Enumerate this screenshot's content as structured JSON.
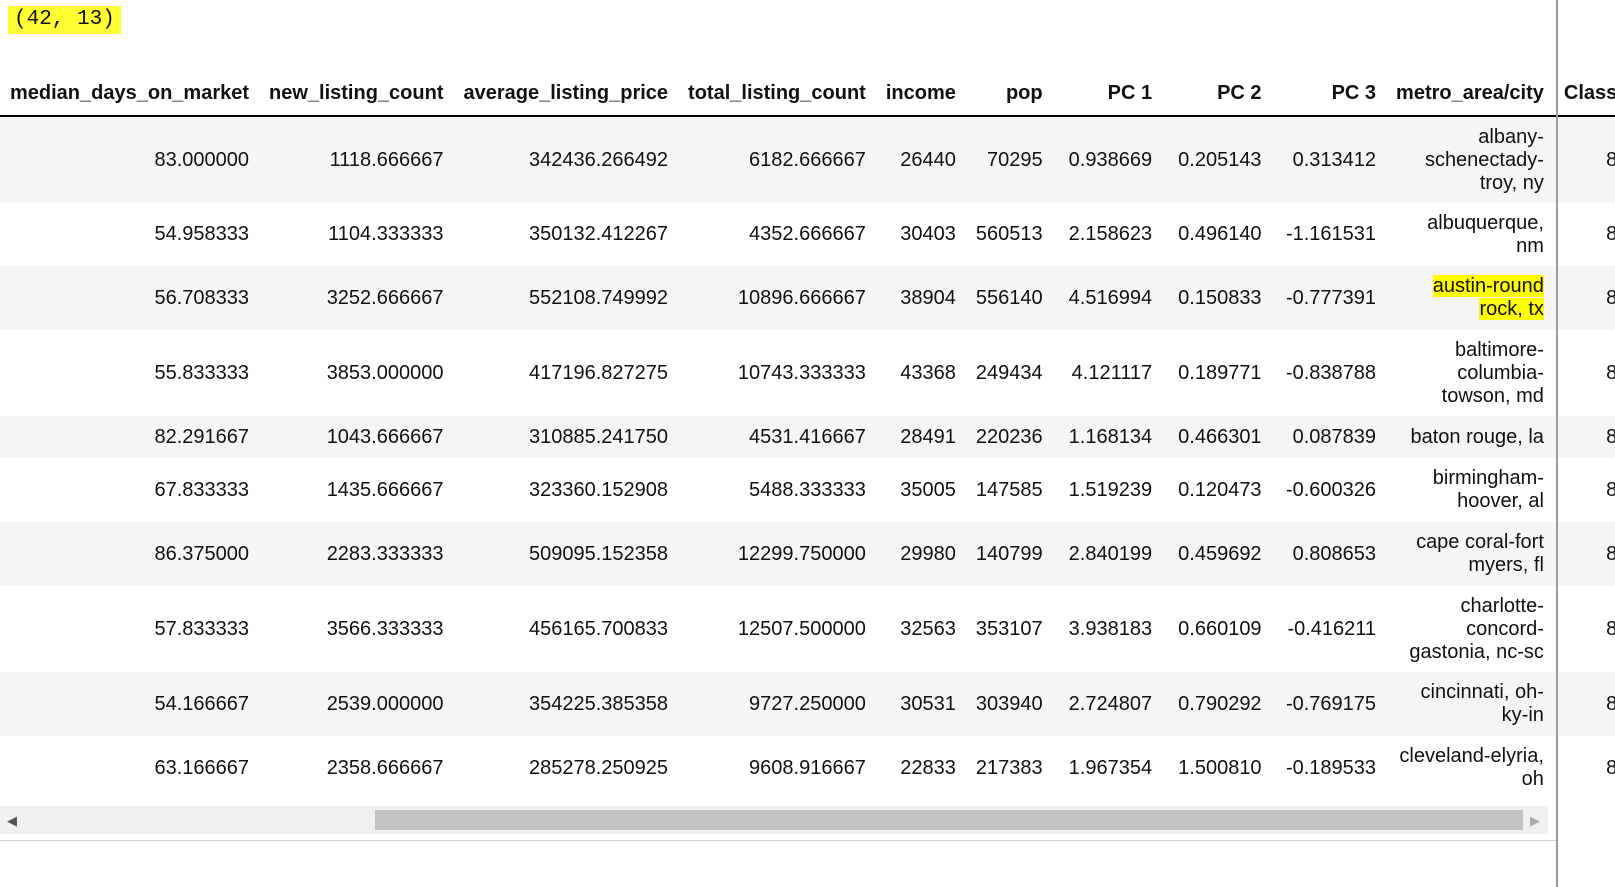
{
  "output": {
    "shape": "(42, 13)"
  },
  "table": {
    "columns": [
      "median_days_on_market",
      "new_listing_count",
      "average_listing_price",
      "total_listing_count",
      "income",
      "pop",
      "PC 1",
      "PC 2",
      "PC 3",
      "metro_area/city",
      "Class"
    ],
    "rows": [
      [
        "83.000000",
        "1118.666667",
        "342436.266492",
        "6182.666667",
        "26440",
        "70295",
        "0.938669",
        "0.205143",
        "0.313412",
        "albany-schenectady-troy, ny",
        "8"
      ],
      [
        "54.958333",
        "1104.333333",
        "350132.412267",
        "4352.666667",
        "30403",
        "560513",
        "2.158623",
        "0.496140",
        "-1.161531",
        "albuquerque, nm",
        "8"
      ],
      [
        "56.708333",
        "3252.666667",
        "552108.749992",
        "10896.666667",
        "38904",
        "556140",
        "4.516994",
        "0.150833",
        "-0.777391",
        "austin-round rock, tx",
        "8"
      ],
      [
        "55.833333",
        "3853.000000",
        "417196.827275",
        "10743.333333",
        "43368",
        "249434",
        "4.121117",
        "0.189771",
        "-0.838788",
        "baltimore-columbia-towson, md",
        "8"
      ],
      [
        "82.291667",
        "1043.666667",
        "310885.241750",
        "4531.416667",
        "28491",
        "220236",
        "1.168134",
        "0.466301",
        "0.087839",
        "baton rouge, la",
        "8"
      ],
      [
        "67.833333",
        "1435.666667",
        "323360.152908",
        "5488.333333",
        "35005",
        "147585",
        "1.519239",
        "0.120473",
        "-0.600326",
        "birmingham-hoover, al",
        "8"
      ],
      [
        "86.375000",
        "2283.333333",
        "509095.152358",
        "12299.750000",
        "29980",
        "140799",
        "2.840199",
        "0.459692",
        "0.808653",
        "cape coral-fort myers, fl",
        "8"
      ],
      [
        "57.833333",
        "3566.333333",
        "456165.700833",
        "12507.500000",
        "32563",
        "353107",
        "3.938183",
        "0.660109",
        "-0.416211",
        "charlotte-concord-gastonia, nc-sc",
        "8"
      ],
      [
        "54.166667",
        "2539.000000",
        "354225.385358",
        "9727.250000",
        "30531",
        "303940",
        "2.724807",
        "0.790292",
        "-0.769175",
        "cincinnati, oh-ky-in",
        "8"
      ],
      [
        "63.166667",
        "2358.666667",
        "285278.250925",
        "9608.916667",
        "22833",
        "217383",
        "1.967354",
        "1.500810",
        "-0.189533",
        "cleveland-elyria, oh",
        "8"
      ]
    ]
  },
  "colors": {
    "highlight": "#ffff00",
    "stripe": "#f5f5f5"
  }
}
